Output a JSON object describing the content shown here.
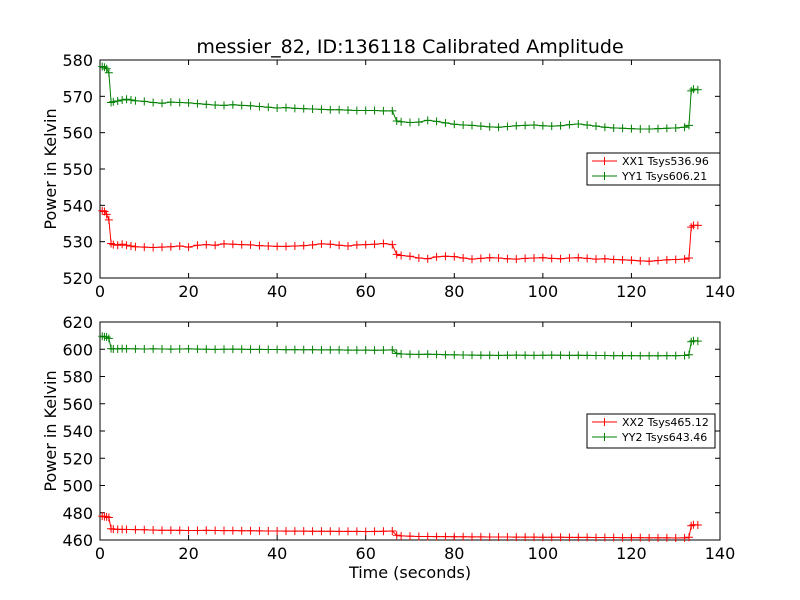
{
  "title": "messier_82, ID:136118 Calibrated Amplitude",
  "xlabel": "Time (seconds)",
  "chart_data": [
    {
      "type": "line",
      "title": "messier_82, ID:136118 Calibrated Amplitude",
      "xlabel": "",
      "ylabel": "Power in Kelvin",
      "xlim": [
        0,
        140
      ],
      "ylim": [
        520,
        580
      ],
      "xticks": [
        0,
        20,
        40,
        60,
        80,
        100,
        120,
        140
      ],
      "yticks": [
        520,
        530,
        540,
        550,
        560,
        570,
        580
      ],
      "grid": false,
      "legend_position": "center-right",
      "marker": "+",
      "series": [
        {
          "name": "XX1 Tsys536.96",
          "color": "#ff0000",
          "x": [
            0.5,
            1,
            1.5,
            2,
            2.5,
            3,
            4,
            5,
            6,
            7,
            8,
            10,
            12,
            14,
            16,
            18,
            20,
            22,
            24,
            26,
            28,
            30,
            32,
            34,
            36,
            38,
            40,
            42,
            44,
            46,
            48,
            50,
            52,
            54,
            56,
            58,
            60,
            62,
            64,
            66,
            67,
            68,
            70,
            72,
            74,
            76,
            78,
            80,
            82,
            84,
            86,
            88,
            90,
            92,
            94,
            96,
            98,
            100,
            102,
            104,
            106,
            108,
            110,
            112,
            114,
            116,
            118,
            120,
            122,
            124,
            126,
            128,
            130,
            132,
            133,
            133.5,
            134,
            135
          ],
          "y": [
            538.5,
            538.3,
            537.5,
            536,
            529.5,
            529.2,
            529,
            529.3,
            529,
            528.8,
            528.6,
            528.5,
            528.4,
            528.5,
            528.6,
            528.8,
            528.5,
            529,
            529.2,
            529,
            529.4,
            529.3,
            529.2,
            529.1,
            528.9,
            528.8,
            528.7,
            528.7,
            528.8,
            528.9,
            529.1,
            529.4,
            529.3,
            529,
            528.8,
            529.1,
            529.2,
            529.3,
            529.5,
            529.2,
            526.5,
            526.2,
            526,
            525.5,
            525.3,
            525.8,
            526,
            525.9,
            525.5,
            525.2,
            525.4,
            525.6,
            525.5,
            525.3,
            525.2,
            525.4,
            525.5,
            525.6,
            525.4,
            525.3,
            525.5,
            525.6,
            525.4,
            525.2,
            525.3,
            525.1,
            525,
            524.9,
            524.7,
            524.6,
            524.8,
            525,
            525.1,
            525.2,
            525.5,
            534,
            534.5,
            534.5
          ]
        },
        {
          "name": "YY1 Tsys606.21",
          "color": "#008000",
          "x": [
            0.5,
            1,
            1.5,
            2,
            2.5,
            3,
            4,
            5,
            6,
            7,
            8,
            10,
            12,
            14,
            16,
            18,
            20,
            22,
            24,
            26,
            28,
            30,
            32,
            34,
            36,
            38,
            40,
            42,
            44,
            46,
            48,
            50,
            52,
            54,
            56,
            58,
            60,
            62,
            64,
            66,
            67,
            68,
            70,
            72,
            74,
            76,
            78,
            80,
            82,
            84,
            86,
            88,
            90,
            92,
            94,
            96,
            98,
            100,
            102,
            104,
            106,
            108,
            110,
            112,
            114,
            116,
            118,
            120,
            122,
            124,
            126,
            128,
            130,
            132,
            133,
            133.5,
            134,
            135
          ],
          "y": [
            578.2,
            578,
            577.6,
            576.5,
            568.3,
            568.5,
            568.7,
            569,
            569.2,
            569,
            568.8,
            568.6,
            568.3,
            568.1,
            568.4,
            568.3,
            568.2,
            568,
            567.8,
            567.6,
            567.5,
            567.7,
            567.5,
            567.4,
            567.2,
            567,
            566.8,
            566.9,
            566.7,
            566.6,
            566.5,
            566.4,
            566.3,
            566.3,
            566.2,
            566.1,
            566.1,
            566.1,
            566,
            566,
            563.2,
            563,
            562.8,
            562.9,
            563.4,
            563.1,
            562.7,
            562.3,
            562.1,
            562,
            561.8,
            561.6,
            561.5,
            561.7,
            561.9,
            562,
            562.1,
            561.9,
            561.8,
            561.9,
            562.2,
            562.4,
            562.1,
            561.8,
            561.5,
            561.3,
            561.2,
            561.1,
            561,
            561,
            561.1,
            561.2,
            561.3,
            561.5,
            562,
            571.5,
            572,
            571.8
          ]
        }
      ]
    },
    {
      "type": "line",
      "title": "",
      "xlabel": "Time (seconds)",
      "ylabel": "Power in Kelvin",
      "xlim": [
        0,
        140
      ],
      "ylim": [
        460,
        620
      ],
      "xticks": [
        0,
        20,
        40,
        60,
        80,
        100,
        120,
        140
      ],
      "yticks": [
        460,
        480,
        500,
        520,
        540,
        560,
        580,
        600,
        620
      ],
      "grid": false,
      "legend_position": "center-right",
      "marker": "+",
      "series": [
        {
          "name": "XX2 Tsys465.12",
          "color": "#ff0000",
          "x": [
            0.5,
            1,
            1.5,
            2,
            2.5,
            3,
            4,
            5,
            6,
            8,
            10,
            12,
            14,
            16,
            18,
            20,
            22,
            24,
            26,
            28,
            30,
            32,
            34,
            36,
            38,
            40,
            42,
            44,
            46,
            48,
            50,
            52,
            54,
            56,
            58,
            60,
            62,
            64,
            66,
            67,
            68,
            70,
            72,
            74,
            76,
            78,
            80,
            82,
            84,
            86,
            88,
            90,
            92,
            94,
            96,
            98,
            100,
            102,
            104,
            106,
            108,
            110,
            112,
            114,
            116,
            118,
            120,
            122,
            124,
            126,
            128,
            130,
            132,
            133,
            133.5,
            134,
            135
          ],
          "y": [
            477.5,
            477.2,
            477,
            476.5,
            468.3,
            468,
            467.8,
            467.8,
            467.7,
            467.6,
            467.5,
            467.3,
            467.2,
            467.2,
            467.1,
            467,
            467,
            467.1,
            467,
            466.9,
            466.9,
            466.8,
            466.8,
            466.7,
            466.6,
            466.6,
            466.5,
            466.5,
            466.5,
            466.4,
            466.4,
            466.4,
            466.3,
            466.3,
            466.3,
            466.2,
            466.3,
            466.4,
            466.6,
            463.5,
            463,
            462.8,
            462.6,
            462.6,
            462.5,
            462.5,
            462.4,
            462.4,
            462.3,
            462.3,
            462.2,
            462.2,
            462.2,
            462.1,
            462.1,
            462.1,
            462,
            462,
            462,
            461.9,
            461.9,
            461.9,
            461.8,
            461.8,
            461.8,
            461.7,
            461.7,
            461.7,
            461.6,
            461.6,
            461.6,
            461.5,
            461.6,
            462,
            470.5,
            471.2,
            471
          ]
        },
        {
          "name": "YY2 Tsys643.46",
          "color": "#008000",
          "x": [
            0.5,
            1,
            1.5,
            2,
            2.5,
            3,
            4,
            5,
            6,
            8,
            10,
            12,
            14,
            16,
            18,
            20,
            22,
            24,
            26,
            28,
            30,
            32,
            34,
            36,
            38,
            40,
            42,
            44,
            46,
            48,
            50,
            52,
            54,
            56,
            58,
            60,
            62,
            64,
            66,
            67,
            68,
            70,
            72,
            74,
            76,
            78,
            80,
            82,
            84,
            86,
            88,
            90,
            92,
            94,
            96,
            98,
            100,
            102,
            104,
            106,
            108,
            110,
            112,
            114,
            116,
            118,
            120,
            122,
            124,
            126,
            128,
            130,
            132,
            133,
            133.5,
            134,
            135
          ],
          "y": [
            609.5,
            609.2,
            609,
            608,
            600.5,
            600.2,
            600.3,
            600.5,
            600.4,
            600.3,
            600.2,
            600.3,
            600.2,
            600.1,
            600.2,
            600.3,
            600.1,
            600,
            599.9,
            600,
            600.1,
            600,
            599.9,
            599.9,
            599.8,
            599.8,
            599.7,
            599.7,
            599.6,
            599.6,
            599.5,
            599.5,
            599.5,
            599.4,
            599.4,
            599.4,
            599.3,
            599.4,
            599.5,
            597,
            596.5,
            596.3,
            596.2,
            596.4,
            596.2,
            596,
            595.9,
            595.8,
            595.7,
            595.6,
            595.6,
            595.5,
            595.6,
            595.7,
            595.6,
            595.5,
            595.6,
            595.7,
            595.6,
            595.5,
            595.6,
            595.5,
            595.4,
            595.4,
            595.3,
            595.3,
            595.3,
            595.2,
            595.2,
            595.2,
            595.3,
            595.3,
            595.4,
            596,
            605.5,
            606.2,
            606
          ]
        }
      ]
    }
  ]
}
